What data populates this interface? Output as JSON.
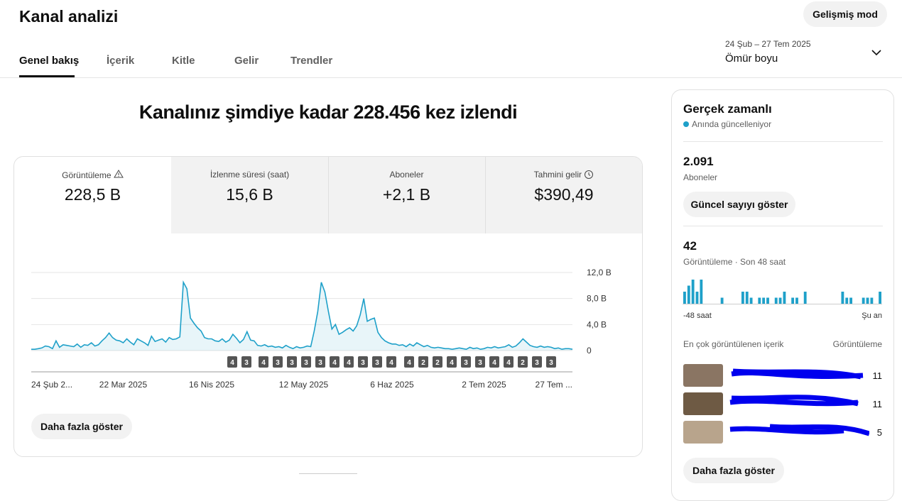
{
  "header": {
    "title": "Kanal analizi",
    "advanced_button": "Gelişmiş mod",
    "tabs": [
      "Genel bakış",
      "İçerik",
      "Kitle",
      "Gelir",
      "Trendler"
    ],
    "date_range": "24 Şub – 27 Tem 2025",
    "period": "Ömür boyu"
  },
  "headline": "Kanalınız şimdiye kadar 228.456 kez izlendi",
  "metrics": [
    {
      "label": "Görüntüleme",
      "value": "228,5 B"
    },
    {
      "label": "İzlenme süresi (saat)",
      "value": "15,6 B"
    },
    {
      "label": "Aboneler",
      "value": "+2,1 B"
    },
    {
      "label": "Tahmini gelir",
      "value": "$390,49"
    }
  ],
  "chart_data": {
    "type": "line",
    "color": "#1ea0c9",
    "categories": [
      "24 Şub 2...",
      null,
      null,
      null,
      null,
      null,
      null,
      null,
      null,
      null,
      null,
      null,
      null,
      null,
      null,
      null,
      null,
      null,
      null,
      null,
      null,
      null,
      null,
      null,
      null,
      null,
      "22 Mar 2025",
      null,
      null,
      null,
      null,
      null,
      null,
      null,
      null,
      null,
      null,
      null,
      null,
      null,
      null,
      null,
      null,
      null,
      null,
      null,
      null,
      null,
      null,
      null,
      null,
      "16 Nis 2025",
      null,
      null,
      null,
      null,
      null,
      null,
      null,
      null,
      null,
      null,
      null,
      null,
      null,
      null,
      null,
      null,
      null,
      null,
      null,
      null,
      null,
      null,
      null,
      null,
      null,
      "12 May 2025",
      null,
      null,
      null,
      null,
      null,
      null,
      null,
      null,
      null,
      null,
      null,
      null,
      null,
      null,
      null,
      null,
      null,
      null,
      null,
      null,
      null,
      null,
      null,
      null,
      "6 Haz 2025",
      null,
      null,
      null,
      null,
      null,
      null,
      null,
      null,
      null,
      null,
      null,
      null,
      null,
      null,
      null,
      null,
      null,
      null,
      null,
      null,
      null,
      null,
      null,
      null,
      null,
      "2 Tem 2025",
      null,
      null,
      null,
      null,
      null,
      null,
      null,
      null,
      null,
      null,
      null,
      null,
      null,
      null,
      null,
      null,
      null,
      null,
      null,
      null,
      null,
      null,
      null,
      null,
      "27 Tem ..."
    ],
    "values": [
      0.2,
      0.2,
      0.3,
      0.4,
      0.7,
      0.6,
      0.3,
      1.5,
      0.5,
      0.9,
      0.8,
      0.7,
      0.6,
      1.0,
      0.5,
      0.9,
      0.8,
      1.2,
      0.7,
      0.9,
      1.5,
      2.0,
      2.7,
      2.0,
      1.6,
      1.5,
      1.2,
      1.8,
      1.3,
      0.9,
      1.8,
      1.5,
      1.2,
      0.8,
      2.2,
      1.4,
      1.6,
      1.8,
      1.3,
      2.0,
      1.7,
      1.8,
      2.1,
      10.5,
      9.5,
      5.0,
      4.2,
      3.5,
      3.0,
      2.0,
      1.8,
      1.8,
      1.5,
      1.4,
      1.8,
      1.3,
      1.6,
      2.5,
      1.9,
      1.2,
      1.7,
      2.9,
      1.6,
      1.5,
      0.8,
      0.7,
      0.9,
      0.6,
      0.7,
      0.5,
      0.6,
      0.4,
      0.8,
      0.5,
      0.3,
      0.6,
      0.4,
      0.5,
      0.7,
      0.6,
      3.0,
      6.0,
      10.5,
      9.0,
      6.0,
      3.3,
      4.0,
      2.5,
      2.8,
      3.2,
      3.5,
      3.0,
      3.8,
      5.5,
      8.0,
      4.5,
      4.8,
      5.0,
      2.8,
      2.0,
      1.5,
      1.2,
      1.0,
      1.0,
      0.8,
      0.9,
      0.6,
      1.0,
      0.7,
      1.2,
      0.9,
      0.6,
      0.8,
      0.5,
      0.4,
      0.5,
      0.4,
      0.3,
      0.3,
      0.2,
      0.3,
      0.4,
      0.3,
      0.2,
      0.5,
      0.3,
      0.4,
      0.2,
      0.3,
      0.5,
      0.4,
      0.6,
      0.4,
      0.5,
      0.6,
      0.9,
      0.5,
      0.7,
      1.2,
      1.8,
      1.3,
      0.8,
      0.6,
      0.5,
      0.7,
      0.5,
      0.6,
      0.5,
      0.3,
      0.4,
      0.2,
      0.3,
      0.3,
      0.2
    ],
    "ylim": [
      0,
      12
    ],
    "yticks": [
      0,
      {
        "value": 4,
        "label": "4,0 B"
      },
      {
        "value": 8,
        "label": "8,0 B"
      },
      {
        "value": 12,
        "label": "12,0 B"
      }
    ],
    "grid": true,
    "upload_markers": [
      4,
      3,
      4,
      3,
      3,
      3,
      3,
      4,
      4,
      3,
      3,
      4,
      4,
      2,
      2,
      4,
      3,
      3,
      4,
      4,
      2,
      3,
      3
    ]
  },
  "show_more": "Daha fazla göster",
  "realtime": {
    "title": "Gerçek zamanlı",
    "status": "Anında güncelleniyor",
    "subscribers": "2.091",
    "subscribers_label": "Aboneler",
    "show_count_button": "Güncel sayıyı göster",
    "views": "42",
    "views_label": "Görüntüleme · Son 48 saat",
    "hourly_views": [
      2,
      3,
      4,
      2,
      4,
      0,
      0,
      0,
      0,
      1,
      0,
      0,
      0,
      0,
      2,
      2,
      1,
      0,
      1,
      1,
      1,
      0,
      1,
      1,
      2,
      0,
      1,
      1,
      0,
      2,
      0,
      0,
      0,
      0,
      0,
      0,
      0,
      0,
      2,
      1,
      1,
      0,
      0,
      1,
      1,
      1,
      0,
      2
    ],
    "axis_start": "-48 saat",
    "axis_end": "Şu an",
    "top_content_label": "En çok görüntülenen içerik",
    "top_content_metric": "Görüntüleme",
    "top_content": [
      {
        "views": "11"
      },
      {
        "views": "11"
      },
      {
        "views": "5"
      }
    ],
    "show_more": "Daha fazla göster"
  }
}
